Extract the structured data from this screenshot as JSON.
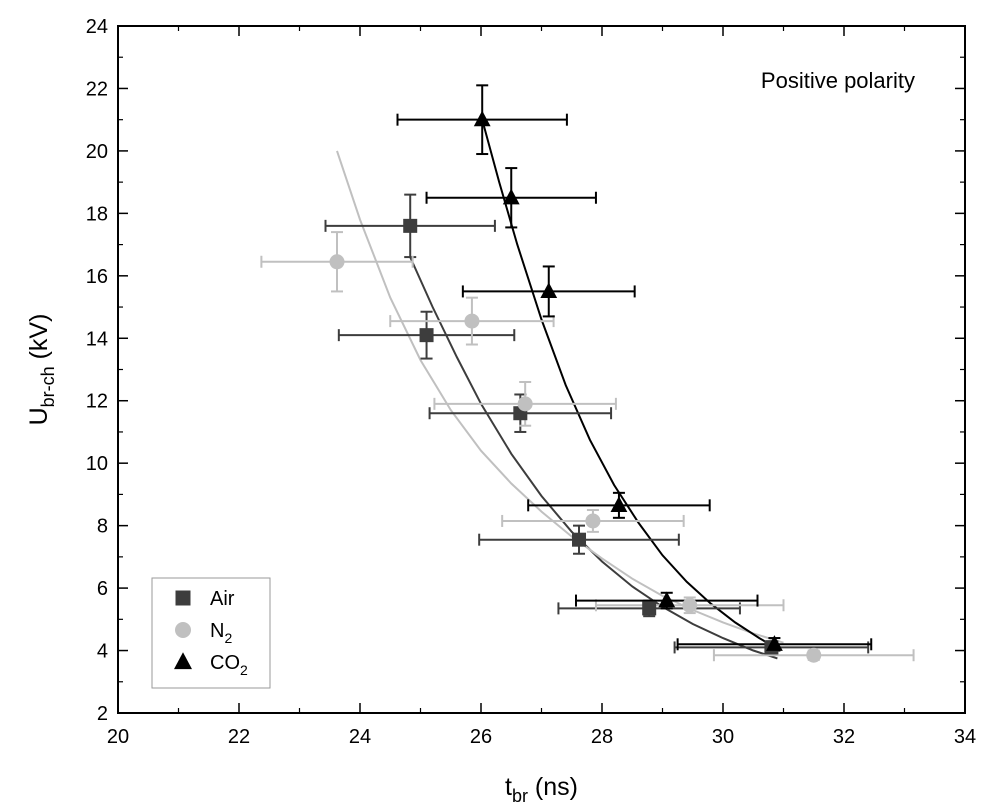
{
  "chart_data": {
    "type": "scatter",
    "annotation": "Positive polarity",
    "xlabel": {
      "main": "t",
      "sub": "br",
      "unit": " (ns)"
    },
    "ylabel": {
      "main": "U",
      "sub": "br-ch",
      "unit": " (kV)"
    },
    "xlim": [
      20,
      34
    ],
    "ylim": [
      2,
      24
    ],
    "xticks": [
      20,
      22,
      24,
      26,
      28,
      30,
      32,
      34
    ],
    "yticks": [
      2,
      4,
      6,
      8,
      10,
      12,
      14,
      16,
      18,
      20,
      22,
      24
    ],
    "grid": false,
    "legend_position": "bottom-left",
    "series": [
      {
        "name": "Air",
        "name_main": "Air",
        "name_sub": "",
        "marker": "square",
        "color": "#3d3d3d",
        "points": [
          {
            "x": 24.83,
            "y": 17.6,
            "xerr": 1.4,
            "yerr": 1.0
          },
          {
            "x": 25.1,
            "y": 14.1,
            "xerr": 1.45,
            "yerr": 0.75
          },
          {
            "x": 26.65,
            "y": 11.6,
            "xerr": 1.5,
            "yerr": 0.6
          },
          {
            "x": 27.62,
            "y": 7.55,
            "xerr": 1.65,
            "yerr": 0.45
          },
          {
            "x": 28.78,
            "y": 5.35,
            "xerr": 1.5,
            "yerr": 0.25
          },
          {
            "x": 30.8,
            "y": 4.1,
            "xerr": 1.6,
            "yerr": 0.2
          }
        ],
        "fit": {
          "x": [
            24.83,
            25.2,
            25.6,
            26.0,
            26.5,
            27.0,
            27.5,
            28.0,
            28.5,
            29.0,
            29.5,
            30.0,
            30.5,
            30.9
          ],
          "y": [
            16.6,
            15.0,
            13.4,
            11.9,
            10.3,
            8.95,
            7.8,
            6.85,
            6.05,
            5.4,
            4.85,
            4.4,
            4.0,
            3.75
          ]
        }
      },
      {
        "name": "N2",
        "name_main": "N",
        "name_sub": "2",
        "marker": "circle",
        "color": "#c0c0c0",
        "points": [
          {
            "x": 23.62,
            "y": 16.45,
            "xerr": 1.25,
            "yerr": 0.95
          },
          {
            "x": 25.85,
            "y": 14.55,
            "xerr": 1.35,
            "yerr": 0.75
          },
          {
            "x": 26.73,
            "y": 11.9,
            "xerr": 1.5,
            "yerr": 0.7
          },
          {
            "x": 27.85,
            "y": 8.15,
            "xerr": 1.5,
            "yerr": 0.35
          },
          {
            "x": 29.45,
            "y": 5.45,
            "xerr": 1.55,
            "yerr": 0.25
          },
          {
            "x": 31.5,
            "y": 3.85,
            "xerr": 1.65,
            "yerr": 0.15
          }
        ],
        "fit": {
          "x": [
            23.62,
            24.0,
            24.5,
            25.0,
            25.5,
            26.0,
            26.5,
            27.0,
            27.5,
            28.0,
            28.5,
            29.0,
            29.5,
            30.0,
            30.5,
            31.0
          ],
          "y": [
            20.0,
            17.8,
            15.3,
            13.3,
            11.7,
            10.4,
            9.35,
            8.45,
            7.65,
            6.95,
            6.3,
            5.75,
            5.3,
            4.9,
            4.55,
            4.25
          ]
        }
      },
      {
        "name": "CO2",
        "name_main": "CO",
        "name_sub": "2",
        "marker": "triangle",
        "color": "#000000",
        "points": [
          {
            "x": 26.02,
            "y": 21.0,
            "xerr": 1.4,
            "yerr": 1.1
          },
          {
            "x": 26.5,
            "y": 18.5,
            "xerr": 1.4,
            "yerr": 0.95
          },
          {
            "x": 27.12,
            "y": 15.5,
            "xerr": 1.42,
            "yerr": 0.8
          },
          {
            "x": 28.28,
            "y": 8.65,
            "xerr": 1.5,
            "yerr": 0.4
          },
          {
            "x": 29.07,
            "y": 5.6,
            "xerr": 1.5,
            "yerr": 0.25
          },
          {
            "x": 30.85,
            "y": 4.2,
            "xerr": 1.6,
            "yerr": 0.2
          }
        ],
        "fit": {
          "x": [
            26.02,
            26.3,
            26.6,
            27.0,
            27.4,
            27.8,
            28.2,
            28.6,
            29.0,
            29.4,
            29.8,
            30.2,
            30.6,
            30.95
          ],
          "y": [
            21.0,
            19.0,
            17.0,
            14.6,
            12.5,
            10.75,
            9.3,
            8.1,
            7.05,
            6.2,
            5.5,
            4.9,
            4.4,
            4.0
          ]
        }
      }
    ]
  }
}
